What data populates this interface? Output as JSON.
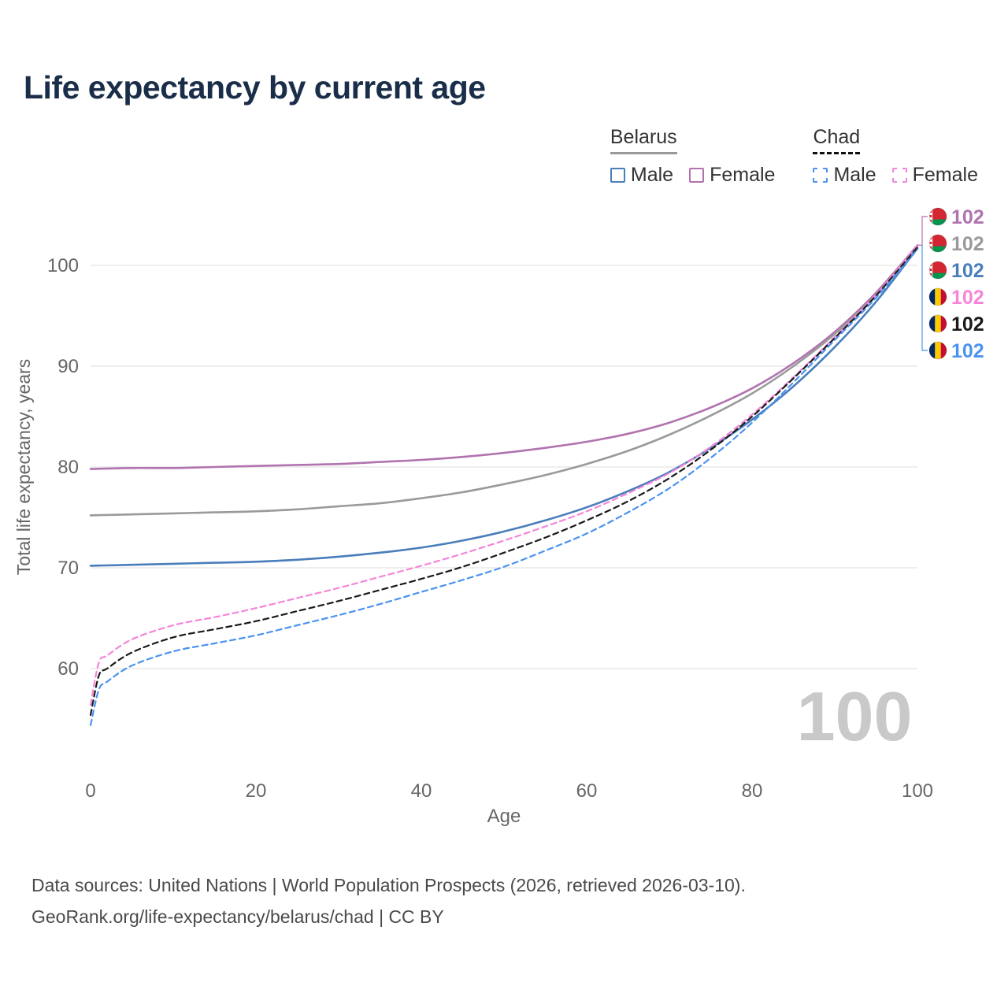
{
  "page": {
    "title": "Life expectancy by current age",
    "footer_line1": "Data sources: United Nations | World Population Prospects (2026, retrieved 2026-03-10).",
    "footer_line2": "GeoRank.org/life-expectancy/belarus/chad | CC BY"
  },
  "legend": {
    "groups": [
      {
        "title": "Belarus",
        "line_style": "solid",
        "items": [
          {
            "label": "Male",
            "color": "#4a7ebb"
          },
          {
            "label": "Female",
            "color": "#b173af"
          }
        ]
      },
      {
        "title": "Chad",
        "line_style": "dashed",
        "items": [
          {
            "label": "Male",
            "color": "#4b93f0"
          },
          {
            "label": "Female",
            "color": "#f585d8"
          }
        ]
      }
    ]
  },
  "chart_data": {
    "type": "line",
    "title": "Life expectancy by current age",
    "xlabel": "Age",
    "ylabel": "Total life expectancy, years",
    "xlim": [
      0,
      100
    ],
    "ylim": [
      53,
      104
    ],
    "xticks": [
      0,
      20,
      40,
      60,
      80,
      100
    ],
    "yticks": [
      60,
      70,
      80,
      90,
      100
    ],
    "grid": "horizontal-only",
    "legend_position": "top-right",
    "counter_label": "100",
    "series": [
      {
        "id": "belarus-female",
        "country": "Belarus",
        "group": "Female",
        "color": "#b173af",
        "dash": false,
        "end_value": 102,
        "points": [
          [
            0,
            79.8
          ],
          [
            5,
            79.9
          ],
          [
            10,
            79.9
          ],
          [
            15,
            80.0
          ],
          [
            20,
            80.1
          ],
          [
            25,
            80.2
          ],
          [
            30,
            80.3
          ],
          [
            35,
            80.5
          ],
          [
            40,
            80.7
          ],
          [
            45,
            81.0
          ],
          [
            50,
            81.4
          ],
          [
            55,
            81.9
          ],
          [
            60,
            82.5
          ],
          [
            65,
            83.3
          ],
          [
            70,
            84.4
          ],
          [
            75,
            85.9
          ],
          [
            80,
            87.8
          ],
          [
            85,
            90.3
          ],
          [
            90,
            93.4
          ],
          [
            95,
            97.3
          ],
          [
            100,
            102.0
          ]
        ]
      },
      {
        "id": "belarus-total",
        "country": "Belarus",
        "group": "Total",
        "color": "#9a9a9a",
        "dash": false,
        "end_value": 102,
        "points": [
          [
            0,
            75.2
          ],
          [
            5,
            75.3
          ],
          [
            10,
            75.4
          ],
          [
            15,
            75.5
          ],
          [
            20,
            75.6
          ],
          [
            25,
            75.8
          ],
          [
            30,
            76.1
          ],
          [
            35,
            76.4
          ],
          [
            40,
            76.9
          ],
          [
            45,
            77.5
          ],
          [
            50,
            78.3
          ],
          [
            55,
            79.2
          ],
          [
            60,
            80.3
          ],
          [
            65,
            81.6
          ],
          [
            70,
            83.2
          ],
          [
            75,
            85.1
          ],
          [
            80,
            87.3
          ],
          [
            85,
            90.0
          ],
          [
            90,
            93.2
          ],
          [
            95,
            97.1
          ],
          [
            100,
            101.9
          ]
        ]
      },
      {
        "id": "belarus-male",
        "country": "Belarus",
        "group": "Male",
        "color": "#4a7ebb",
        "dash": false,
        "end_value": 102,
        "points": [
          [
            0,
            70.2
          ],
          [
            5,
            70.3
          ],
          [
            10,
            70.4
          ],
          [
            15,
            70.5
          ],
          [
            20,
            70.6
          ],
          [
            25,
            70.8
          ],
          [
            30,
            71.1
          ],
          [
            35,
            71.5
          ],
          [
            40,
            72.0
          ],
          [
            45,
            72.7
          ],
          [
            50,
            73.6
          ],
          [
            55,
            74.7
          ],
          [
            60,
            76.0
          ],
          [
            65,
            77.6
          ],
          [
            70,
            79.5
          ],
          [
            75,
            81.9
          ],
          [
            80,
            84.7
          ],
          [
            85,
            88.0
          ],
          [
            90,
            91.9
          ],
          [
            95,
            96.4
          ],
          [
            100,
            101.7
          ]
        ]
      },
      {
        "id": "chad-female",
        "country": "Chad",
        "group": "Female",
        "color": "#f585d8",
        "dash": true,
        "end_value": 102,
        "points": [
          [
            0,
            56.4
          ],
          [
            1,
            60.6
          ],
          [
            2,
            61.3
          ],
          [
            5,
            62.9
          ],
          [
            10,
            64.3
          ],
          [
            15,
            65.1
          ],
          [
            20,
            66.0
          ],
          [
            25,
            67.0
          ],
          [
            30,
            68.0
          ],
          [
            35,
            69.1
          ],
          [
            40,
            70.2
          ],
          [
            45,
            71.4
          ],
          [
            50,
            72.7
          ],
          [
            55,
            74.1
          ],
          [
            60,
            75.6
          ],
          [
            65,
            77.4
          ],
          [
            70,
            79.4
          ],
          [
            75,
            82.0
          ],
          [
            80,
            85.2
          ],
          [
            85,
            88.9
          ],
          [
            90,
            92.9
          ],
          [
            95,
            97.1
          ],
          [
            100,
            102.0
          ]
        ]
      },
      {
        "id": "chad-total",
        "country": "Chad",
        "group": "Total",
        "color": "#1a1a1a",
        "dash": true,
        "end_value": 102,
        "points": [
          [
            0,
            55.4
          ],
          [
            1,
            59.3
          ],
          [
            2,
            60.0
          ],
          [
            5,
            61.6
          ],
          [
            10,
            63.1
          ],
          [
            15,
            63.9
          ],
          [
            20,
            64.7
          ],
          [
            25,
            65.7
          ],
          [
            30,
            66.7
          ],
          [
            35,
            67.8
          ],
          [
            40,
            68.9
          ],
          [
            45,
            70.1
          ],
          [
            50,
            71.5
          ],
          [
            55,
            73.0
          ],
          [
            60,
            74.7
          ],
          [
            65,
            76.6
          ],
          [
            70,
            78.9
          ],
          [
            75,
            81.7
          ],
          [
            80,
            85.0
          ],
          [
            85,
            88.8
          ],
          [
            90,
            92.8
          ],
          [
            95,
            97.0
          ],
          [
            100,
            101.8
          ]
        ]
      },
      {
        "id": "chad-male",
        "country": "Chad",
        "group": "Male",
        "color": "#4b93f0",
        "dash": true,
        "end_value": 102,
        "points": [
          [
            0,
            54.4
          ],
          [
            1,
            57.9
          ],
          [
            2,
            58.7
          ],
          [
            5,
            60.3
          ],
          [
            10,
            61.7
          ],
          [
            15,
            62.5
          ],
          [
            20,
            63.3
          ],
          [
            25,
            64.3
          ],
          [
            30,
            65.3
          ],
          [
            35,
            66.4
          ],
          [
            40,
            67.6
          ],
          [
            45,
            68.8
          ],
          [
            50,
            70.1
          ],
          [
            55,
            71.7
          ],
          [
            60,
            73.4
          ],
          [
            65,
            75.5
          ],
          [
            70,
            77.9
          ],
          [
            75,
            80.9
          ],
          [
            80,
            84.4
          ],
          [
            85,
            88.4
          ],
          [
            90,
            92.6
          ],
          [
            95,
            96.8
          ],
          [
            100,
            101.6
          ]
        ]
      }
    ],
    "end_labels": [
      {
        "text": "102",
        "color": "#b173af",
        "flag": "belarus",
        "series": "belarus-female"
      },
      {
        "text": "102",
        "color": "#9a9a9a",
        "flag": "belarus",
        "series": "belarus-total"
      },
      {
        "text": "102",
        "color": "#4a7ebb",
        "flag": "belarus",
        "series": "belarus-male"
      },
      {
        "text": "102",
        "color": "#f585d8",
        "flag": "chad",
        "series": "chad-female"
      },
      {
        "text": "102",
        "color": "#1a1a1a",
        "flag": "chad",
        "series": "chad-total"
      },
      {
        "text": "102",
        "color": "#4b93f0",
        "flag": "chad",
        "series": "chad-male"
      }
    ]
  }
}
